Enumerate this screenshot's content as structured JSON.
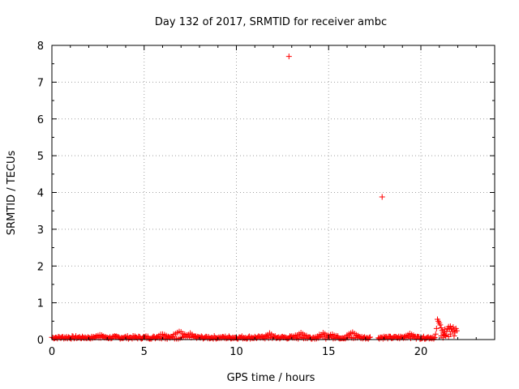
{
  "chart_data": {
    "type": "scatter",
    "title": "Day 132 of 2017, SRMTID for receiver ambc",
    "xlabel": "GPS time / hours",
    "ylabel": "SRMTID / TECUs",
    "xlim": [
      0,
      24
    ],
    "ylim": [
      0,
      8
    ],
    "xticks": [
      "0",
      "5",
      "10",
      "15",
      "20"
    ],
    "yticks": [
      "0",
      "1",
      "2",
      "3",
      "4",
      "5",
      "6",
      "7",
      "8"
    ],
    "grid": true,
    "marker": "+",
    "series_color": "#ff0000",
    "outliers": [
      {
        "x": 12.85,
        "y": 7.7
      },
      {
        "x": 17.9,
        "y": 3.88
      }
    ],
    "baseline": {
      "x_start": 0.0,
      "x_end": 20.7,
      "x_step": 0.1,
      "typical_y": [
        0.02,
        0.1
      ],
      "bumps": [
        {
          "x": 2.6,
          "y": 0.14
        },
        {
          "x": 6.0,
          "y": 0.16
        },
        {
          "x": 6.9,
          "y": 0.22
        },
        {
          "x": 7.5,
          "y": 0.16
        },
        {
          "x": 11.8,
          "y": 0.16
        },
        {
          "x": 13.5,
          "y": 0.18
        },
        {
          "x": 14.7,
          "y": 0.17
        },
        {
          "x": 15.2,
          "y": 0.15
        },
        {
          "x": 16.3,
          "y": 0.19
        },
        {
          "x": 19.4,
          "y": 0.17
        }
      ],
      "gaps": [
        [
          17.2,
          17.6
        ]
      ]
    },
    "tail": [
      {
        "x": 20.8,
        "y": 0.15
      },
      {
        "x": 20.85,
        "y": 0.3
      },
      {
        "x": 20.9,
        "y": 0.55
      },
      {
        "x": 20.95,
        "y": 0.5
      },
      {
        "x": 21.0,
        "y": 0.45
      },
      {
        "x": 21.05,
        "y": 0.4
      },
      {
        "x": 21.1,
        "y": 0.32
      },
      {
        "x": 21.15,
        "y": 0.25
      },
      {
        "x": 21.2,
        "y": 0.2
      },
      {
        "x": 21.25,
        "y": 0.15
      },
      {
        "x": 21.3,
        "y": 0.12
      },
      {
        "x": 21.35,
        "y": 0.1
      },
      {
        "x": 21.4,
        "y": 0.22
      },
      {
        "x": 21.45,
        "y": 0.3
      },
      {
        "x": 21.5,
        "y": 0.35
      },
      {
        "x": 21.55,
        "y": 0.28
      },
      {
        "x": 21.6,
        "y": 0.36
      },
      {
        "x": 21.65,
        "y": 0.3
      },
      {
        "x": 21.7,
        "y": 0.22
      },
      {
        "x": 21.75,
        "y": 0.34
      },
      {
        "x": 21.8,
        "y": 0.26
      },
      {
        "x": 21.85,
        "y": 0.2
      },
      {
        "x": 21.9,
        "y": 0.3
      },
      {
        "x": 21.95,
        "y": 0.24
      },
      {
        "x": 21.1,
        "y": 0.1
      },
      {
        "x": 21.2,
        "y": 0.05
      },
      {
        "x": 21.5,
        "y": 0.08
      },
      {
        "x": 21.8,
        "y": 0.1
      },
      {
        "x": 21.6,
        "y": 0.15
      },
      {
        "x": 21.3,
        "y": 0.28
      }
    ]
  }
}
